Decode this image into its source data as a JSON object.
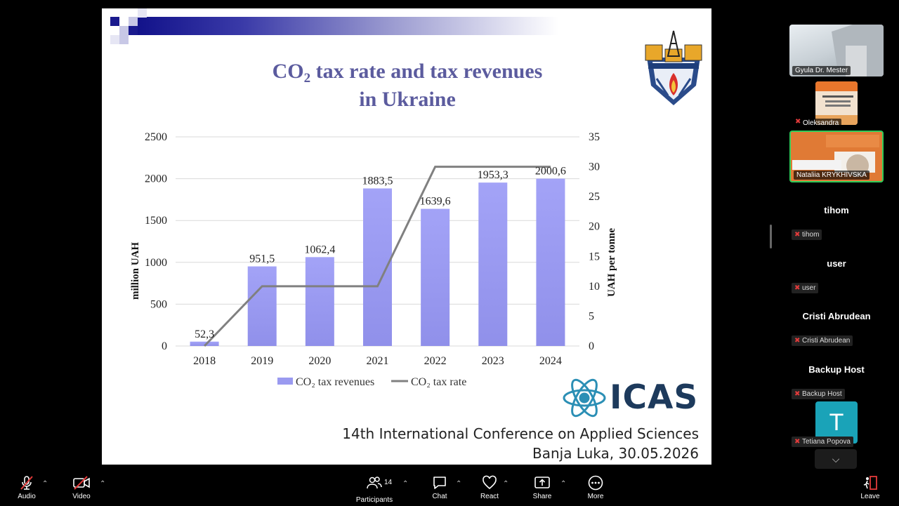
{
  "slide": {
    "title_prefix": "CO",
    "title_sub": "2",
    "title_rest": " tax rate and tax revenues",
    "title_line2": "in Ukraine",
    "icas": "ICAS",
    "conference_name": "14th International Conference on Applied Sciences",
    "conference_place": "Banja Luka, 30.05.2026"
  },
  "chart_data": {
    "type": "bar",
    "categories": [
      "2018",
      "2019",
      "2020",
      "2021",
      "2022",
      "2023",
      "2024"
    ],
    "series": [
      {
        "name": "CO₂ tax revenues",
        "type": "bar",
        "axis": "left",
        "values": [
          52.3,
          951.5,
          1062.4,
          1883.5,
          1639.6,
          1953.3,
          2000.6
        ],
        "labels": [
          "52,3",
          "951,5",
          "1062,4",
          "1883,5",
          "1639,6",
          "1953,3",
          "2000,6"
        ],
        "color": "#9e9ef5"
      },
      {
        "name": "CO₂ tax rate",
        "type": "line",
        "axis": "right",
        "values": [
          0,
          10,
          10,
          10,
          30,
          30,
          30
        ],
        "color": "#808080"
      }
    ],
    "ylabel": "million UAH",
    "y2label": "UAH per tonne",
    "ylim": [
      0,
      2500
    ],
    "y2lim": [
      0,
      35
    ],
    "yticks": [
      "0",
      "500",
      "1000",
      "1500",
      "2000",
      "2500"
    ],
    "y2ticks": [
      "0",
      "5",
      "10",
      "15",
      "20",
      "25",
      "30",
      "35"
    ],
    "grid": true,
    "legend": "bottom"
  },
  "gallery": {
    "video_tiles": [
      {
        "name": "Gyula Dr. Mester"
      },
      {
        "name": "Oleksandra"
      },
      {
        "name": "Nataliia KRYKHIVSKA",
        "speaking": true
      }
    ],
    "name_tiles": [
      {
        "big": "tihom",
        "small": "tihom"
      },
      {
        "big": "user",
        "small": "user"
      },
      {
        "big": "Cristi Abrudean",
        "small": "Cristi Abrudean"
      },
      {
        "big": "Backup Host",
        "small": "Backup Host"
      }
    ],
    "avatar_tile": {
      "initial": "T",
      "name": "Tetiana Popova",
      "color": "#1aa3b8"
    }
  },
  "toolbar": {
    "audio": "Audio",
    "video": "Video",
    "participants": "Participants",
    "participants_count": "14",
    "chat": "Chat",
    "react": "React",
    "share": "Share",
    "more": "More",
    "leave": "Leave"
  }
}
